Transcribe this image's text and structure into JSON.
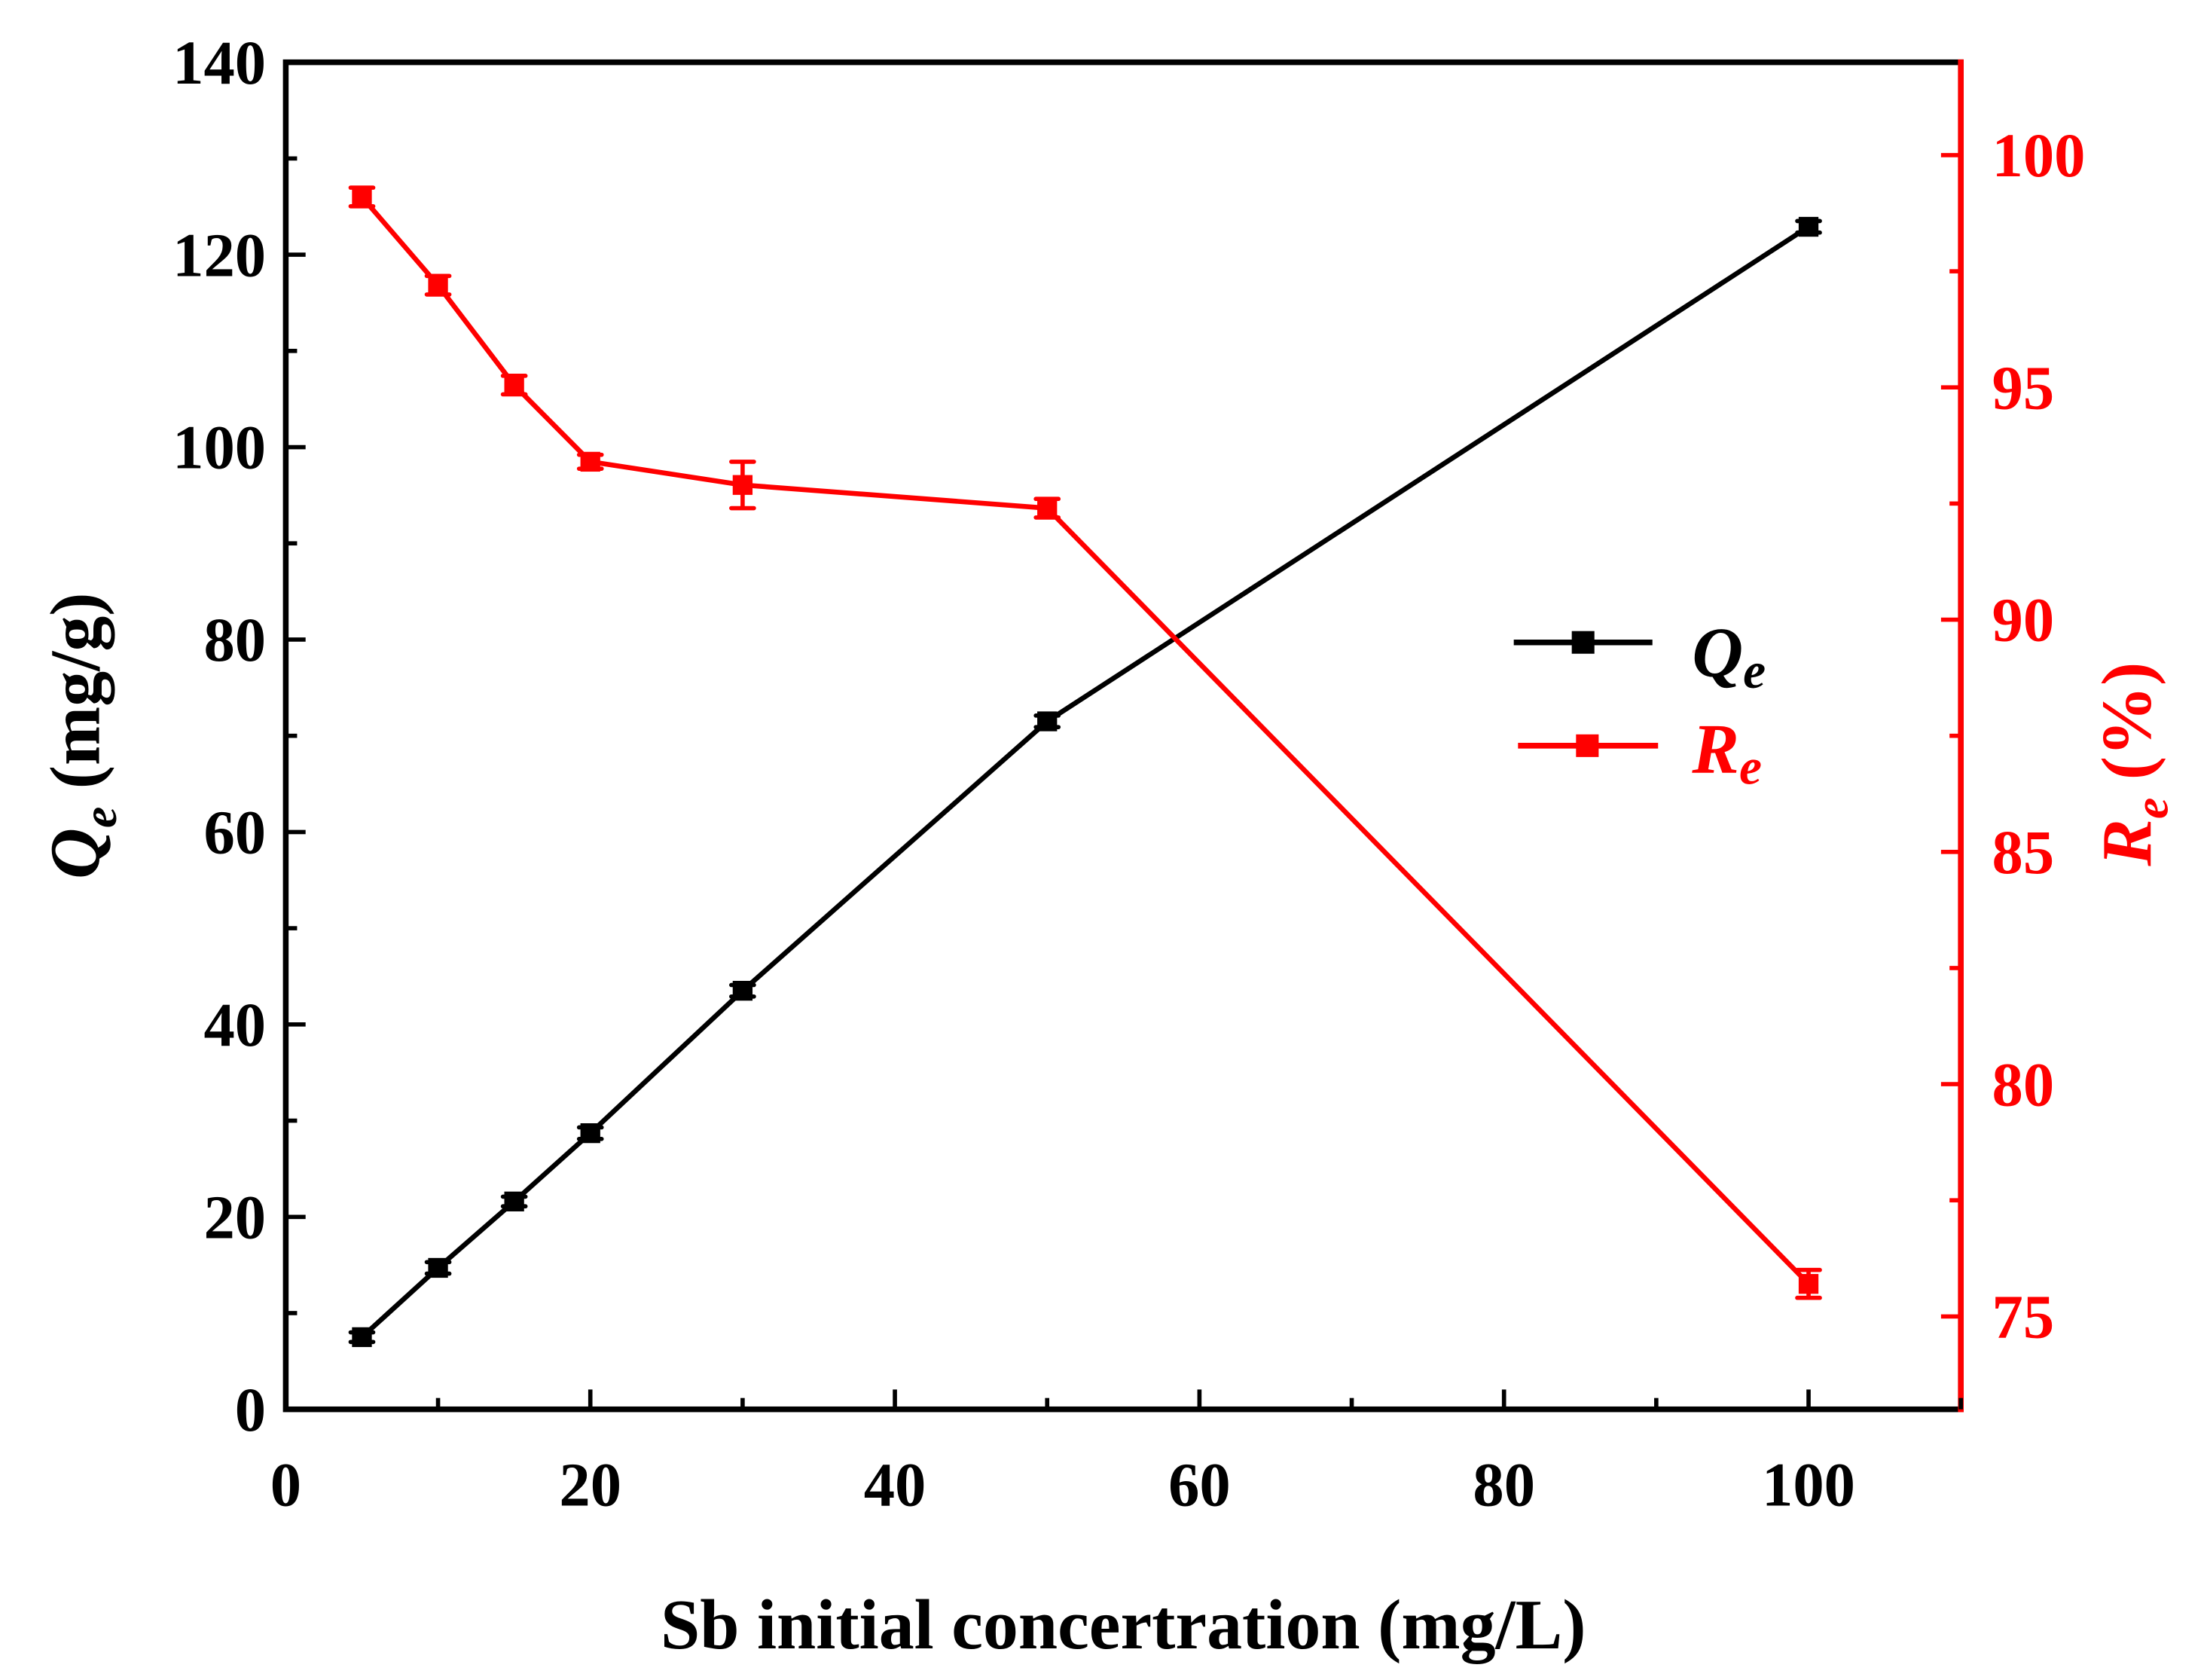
{
  "chart_data": {
    "type": "line",
    "title": "",
    "xlabel": "Sb initial concertration (mg/L)",
    "ylabel": {
      "main": "Q",
      "sub": "e",
      "unit": " (mg/g)"
    },
    "y2label": {
      "main": "R",
      "sub": "e",
      "unit": " (%)"
    },
    "xlim": [
      0,
      110
    ],
    "ylim": [
      0,
      140
    ],
    "y2lim": [
      73,
      102
    ],
    "xticks": [
      "0",
      "20",
      "40",
      "60",
      "80",
      "100"
    ],
    "yticks": [
      "0",
      "20",
      "40",
      "60",
      "80",
      "100",
      "120",
      "140"
    ],
    "y2ticks": [
      "75",
      "80",
      "85",
      "90",
      "95",
      "100"
    ],
    "grid": false,
    "legend_position": "center-right",
    "x": [
      5,
      10,
      15,
      20,
      30,
      50,
      100
    ],
    "series": [
      {
        "name": "Q",
        "name_sub": "e",
        "axis": "left",
        "color": "#000000",
        "values": [
          7.5,
          14.7,
          21.6,
          28.7,
          43.5,
          71.5,
          122.9
        ],
        "errors": [
          0.5,
          0.6,
          0.5,
          0.6,
          0.6,
          0.6,
          0.6
        ]
      },
      {
        "name": "R",
        "name_sub": "e",
        "axis": "right",
        "color": "#ff0000",
        "values": [
          99.1,
          97.2,
          95.05,
          93.4,
          92.9,
          92.4,
          75.7
        ],
        "errors": [
          0.2,
          0.2,
          0.2,
          0.15,
          0.5,
          0.2,
          0.3
        ]
      }
    ]
  }
}
